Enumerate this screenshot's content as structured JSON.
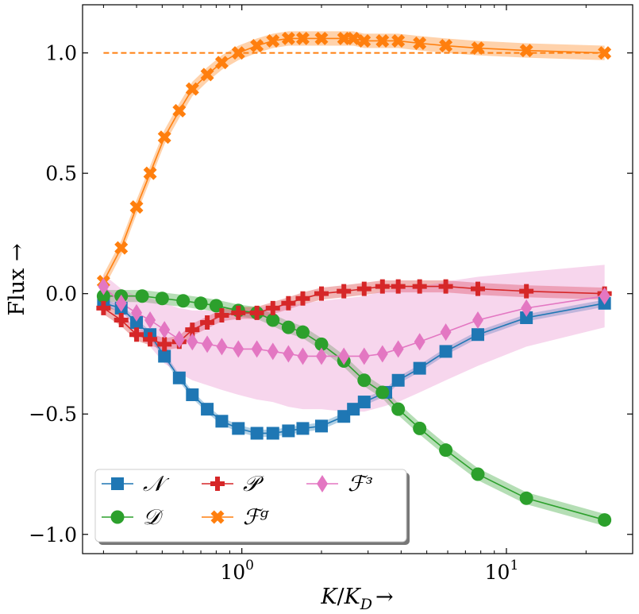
{
  "chart_data": {
    "type": "line",
    "xscale": "log",
    "xlim": [
      0.25,
      30
    ],
    "ylim": [
      -1.08,
      1.2
    ],
    "xlabel": "K/K_D →",
    "ylabel": "Flux →",
    "x_ticks": [
      {
        "value": 1,
        "label": "10",
        "exp": "0"
      },
      {
        "value": 10,
        "label": "10",
        "exp": "1"
      }
    ],
    "y_ticks": [
      {
        "value": 1.0,
        "label": "1.0"
      },
      {
        "value": 0.5,
        "label": "0.5"
      },
      {
        "value": 0.0,
        "label": "0.0"
      },
      {
        "value": -0.5,
        "label": "−0.5"
      },
      {
        "value": -1.0,
        "label": "−1.0"
      }
    ],
    "reference_line": {
      "y": 1.0,
      "x_start": 0.3,
      "x_end": 24,
      "color": "#ff7f0e",
      "style": "dashed"
    },
    "series": [
      {
        "name": "𝒩",
        "key": "N",
        "color": "#1f77b4",
        "marker": "square",
        "x": [
          0.3,
          0.35,
          0.4,
          0.45,
          0.51,
          0.58,
          0.65,
          0.74,
          0.84,
          0.97,
          1.14,
          1.31,
          1.5,
          1.7,
          2.0,
          2.43,
          2.64,
          2.9,
          3.5,
          3.9,
          4.7,
          5.9,
          7.8,
          11.9,
          23.5
        ],
        "values": [
          -0.04,
          -0.06,
          -0.12,
          -0.17,
          -0.26,
          -0.35,
          -0.42,
          -0.48,
          -0.53,
          -0.56,
          -0.58,
          -0.58,
          -0.57,
          -0.56,
          -0.55,
          -0.51,
          -0.48,
          -0.45,
          -0.41,
          -0.36,
          -0.31,
          -0.24,
          -0.17,
          -0.1,
          -0.04
        ],
        "band": 0.015
      },
      {
        "name": "𝒟",
        "key": "D",
        "color": "#2ca02c",
        "marker": "circle",
        "x": [
          0.3,
          0.35,
          0.42,
          0.5,
          0.6,
          0.7,
          0.8,
          0.97,
          1.14,
          1.31,
          1.5,
          1.7,
          2.0,
          2.43,
          2.9,
          3.4,
          3.9,
          4.7,
          5.9,
          7.8,
          11.9,
          23.5
        ],
        "values": [
          -0.01,
          -0.01,
          -0.01,
          -0.02,
          -0.03,
          -0.04,
          -0.05,
          -0.07,
          -0.08,
          -0.11,
          -0.14,
          -0.16,
          -0.21,
          -0.28,
          -0.36,
          -0.41,
          -0.48,
          -0.56,
          -0.65,
          -0.75,
          -0.85,
          -0.94
        ],
        "band": 0.025
      },
      {
        "name": "𝒫",
        "key": "P",
        "color": "#d62728",
        "marker": "plus",
        "x": [
          0.3,
          0.35,
          0.4,
          0.45,
          0.51,
          0.58,
          0.65,
          0.74,
          0.84,
          0.97,
          1.14,
          1.31,
          1.5,
          1.7,
          2.0,
          2.43,
          2.9,
          3.4,
          3.9,
          4.7,
          5.9,
          7.8,
          11.9,
          23.5
        ],
        "values": [
          -0.06,
          -0.11,
          -0.17,
          -0.19,
          -0.21,
          -0.2,
          -0.15,
          -0.12,
          -0.09,
          -0.08,
          -0.08,
          -0.06,
          -0.04,
          -0.02,
          0.0,
          0.01,
          0.02,
          0.03,
          0.03,
          0.03,
          0.03,
          0.02,
          0.01,
          0.0
        ],
        "band": 0.025
      },
      {
        "name": "ℱᵍ",
        "key": "Fg",
        "color": "#ff7f0e",
        "marker": "x",
        "x": [
          0.3,
          0.35,
          0.4,
          0.45,
          0.51,
          0.58,
          0.65,
          0.74,
          0.84,
          0.97,
          1.14,
          1.31,
          1.5,
          1.7,
          2.0,
          2.43,
          2.64,
          2.9,
          3.4,
          3.9,
          4.7,
          5.9,
          7.8,
          11.9,
          23.5
        ],
        "values": [
          0.05,
          0.19,
          0.36,
          0.5,
          0.65,
          0.76,
          0.85,
          0.91,
          0.96,
          1.0,
          1.03,
          1.05,
          1.06,
          1.06,
          1.06,
          1.06,
          1.06,
          1.05,
          1.05,
          1.05,
          1.04,
          1.03,
          1.02,
          1.01,
          1.0
        ],
        "band": 0.03
      },
      {
        "name": "ℱᶟ",
        "key": "Fs",
        "color": "#e377c2",
        "marker": "diamond",
        "x": [
          0.3,
          0.35,
          0.4,
          0.45,
          0.51,
          0.58,
          0.65,
          0.74,
          0.84,
          0.97,
          1.14,
          1.31,
          1.5,
          1.7,
          2.0,
          2.43,
          2.9,
          3.4,
          3.9,
          4.7,
          5.9,
          7.8,
          11.9,
          23.5
        ],
        "values": [
          0.03,
          -0.04,
          -0.08,
          -0.11,
          -0.15,
          -0.19,
          -0.2,
          -0.21,
          -0.22,
          -0.23,
          -0.23,
          -0.24,
          -0.25,
          -0.26,
          -0.26,
          -0.26,
          -0.26,
          -0.25,
          -0.23,
          -0.2,
          -0.16,
          -0.11,
          -0.06,
          -0.01
        ],
        "band_lower": [
          -0.02,
          -0.1,
          -0.16,
          -0.22,
          -0.29,
          -0.33,
          -0.36,
          -0.38,
          -0.4,
          -0.42,
          -0.44,
          -0.45,
          -0.47,
          -0.48,
          -0.48,
          -0.49,
          -0.49,
          -0.47,
          -0.45,
          -0.41,
          -0.36,
          -0.3,
          -0.22,
          -0.14
        ],
        "band_upper": [
          0.08,
          0.02,
          -0.01,
          -0.02,
          -0.04,
          -0.06,
          -0.07,
          -0.07,
          -0.07,
          -0.07,
          -0.06,
          -0.05,
          -0.05,
          -0.04,
          -0.03,
          -0.02,
          -0.01,
          0.01,
          0.02,
          0.03,
          0.05,
          0.07,
          0.09,
          0.12
        ]
      }
    ],
    "legend": {
      "position": "bottom-left",
      "columns": 3,
      "order": [
        "N",
        "D",
        "P",
        "Fg",
        "Fs"
      ]
    }
  }
}
